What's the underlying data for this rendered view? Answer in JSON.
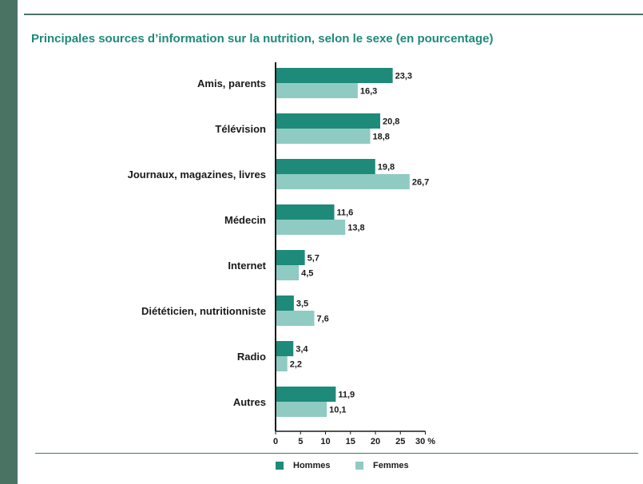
{
  "title": "Principales sources d’information sur la nutrition, selon le sexe (en pourcentage)",
  "colors": {
    "band": "#4b7363",
    "title": "#1e8a7a",
    "hommes": "#1e8a7a",
    "femmes": "#8fcbc2"
  },
  "chart_data": {
    "type": "bar",
    "orientation": "horizontal",
    "title": "Principales sources d’information sur la nutrition, selon le sexe (en pourcentage)",
    "categories": [
      "Amis, parents",
      "Télévision",
      "Journaux, magazines, livres",
      "Médecin",
      "Internet",
      "Diététicien, nutritionniste",
      "Radio",
      "Autres"
    ],
    "series": [
      {
        "name": "Hommes",
        "values": [
          23.3,
          20.8,
          19.8,
          11.6,
          5.7,
          3.5,
          3.4,
          11.9
        ],
        "labels": [
          "23,3",
          "20,8",
          "19,8",
          "11,6",
          "5,7",
          "3,5",
          "3,4",
          "11,9"
        ]
      },
      {
        "name": "Femmes",
        "values": [
          16.3,
          18.8,
          26.7,
          13.8,
          4.5,
          7.6,
          2.2,
          10.1
        ],
        "labels": [
          "16,3",
          "18,8",
          "26,7",
          "13,8",
          "4,5",
          "7,6",
          "2,2",
          "10,1"
        ]
      }
    ],
    "xlim": [
      0,
      30
    ],
    "xticks": [
      "0",
      "5",
      "10",
      "15",
      "20",
      "25",
      "30 %"
    ],
    "grid": false,
    "legend_position": "bottom"
  }
}
